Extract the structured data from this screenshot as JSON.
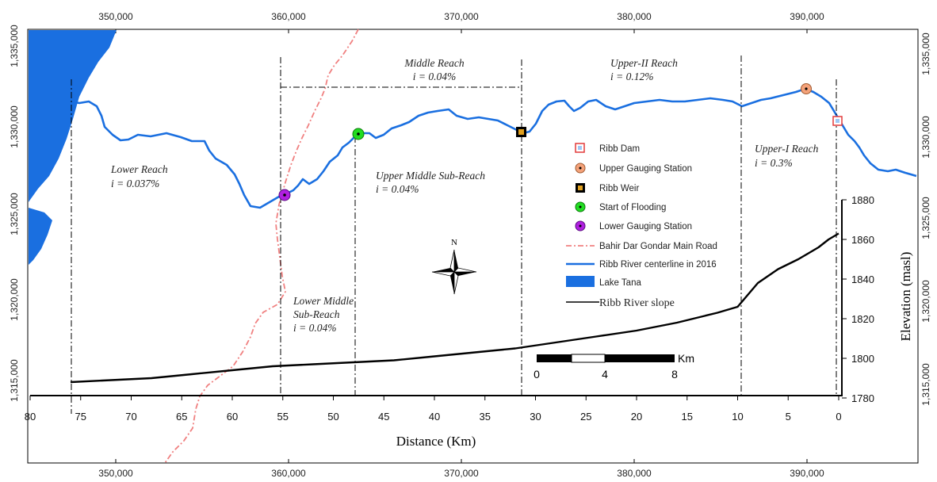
{
  "colors": {
    "river": "#1a6fe0",
    "lake": "#1a6fe0",
    "road": "#f08080",
    "slope": "#000000",
    "dam": "#e23a3a",
    "upper_station": "#f4a27a",
    "weir": "#000000",
    "flooding": "#22dd22",
    "lower_station": "#b020e0"
  },
  "easting_ticks": [
    "350,000",
    "360,000",
    "370,000",
    "380,000",
    "390,000"
  ],
  "northing_ticks": [
    "1,335,000",
    "1,330,000",
    "1,325,000",
    "1,320,000",
    "1,315,000"
  ],
  "reaches": {
    "middle": {
      "name": "Middle Reach",
      "slope": "i = 0.04%"
    },
    "upper_ii": {
      "name": "Upper-II Reach",
      "slope": "i = 0.12%"
    },
    "upper_i": {
      "name": "Upper-I Reach",
      "slope": "i = 0.3%"
    },
    "lower": {
      "name": "Lower Reach",
      "slope": "i = 0.037%"
    },
    "upper_middle": {
      "name": "Upper Middle Sub-Reach",
      "slope": "i = 0.04%"
    },
    "lower_middle": {
      "line1": "Lower Middle",
      "line2": "Sub-Reach",
      "slope": "i = 0.04%"
    }
  },
  "legend": [
    {
      "label": "Ribb Dam",
      "icon": "dam-icon"
    },
    {
      "label": "Upper Gauging Station",
      "icon": "gauging-station-icon"
    },
    {
      "label": "Ribb Weir",
      "icon": "weir-icon"
    },
    {
      "label": "Start of Flooding",
      "icon": "flooding-icon"
    },
    {
      "label": "Lower Gauging Station",
      "icon": "gauging-station-icon"
    },
    {
      "label": "Bahir Dar Gondar Main Road",
      "icon": "road-line-icon"
    },
    {
      "label": "Ribb River centerline in 2016",
      "icon": "river-line-icon"
    },
    {
      "label": "Lake Tana",
      "icon": "lake-fill-icon"
    },
    {
      "label": "Ribb River slope",
      "icon": "slope-line-icon"
    }
  ],
  "north_label": "N",
  "scale_bar": {
    "unit": "Km",
    "labels": [
      "0",
      "4",
      "8"
    ]
  },
  "distance_axis": {
    "label": "Distance (Km)",
    "ticks": [
      "80",
      "75",
      "70",
      "65",
      "60",
      "55",
      "50",
      "45",
      "40",
      "35",
      "30",
      "25",
      "20",
      "15",
      "10",
      "5",
      "0"
    ]
  },
  "elevation_axis": {
    "label": "Elevation (masl)",
    "ticks": [
      "1880",
      "1860",
      "1840",
      "1820",
      "1800",
      "1780"
    ]
  },
  "chart_data": {
    "type": "line",
    "xlabel": "Distance (Km)",
    "ylabel": "Elevation (masl)",
    "xlim": [
      80,
      0
    ],
    "ylim": [
      1780,
      1880
    ],
    "series": [
      {
        "name": "Ribb River slope",
        "x": [
          76,
          72,
          68,
          64,
          60,
          56,
          52,
          48,
          44,
          40,
          36,
          32,
          28,
          24,
          20,
          16,
          12,
          10,
          8,
          6,
          4,
          2,
          1,
          0
        ],
        "y": [
          1788,
          1789,
          1790,
          1792,
          1794,
          1796,
          1797,
          1798,
          1799,
          1801,
          1803,
          1805,
          1808,
          1811,
          1814,
          1818,
          1823,
          1826,
          1838,
          1845,
          1850,
          1856,
          1860,
          1863
        ]
      }
    ]
  }
}
